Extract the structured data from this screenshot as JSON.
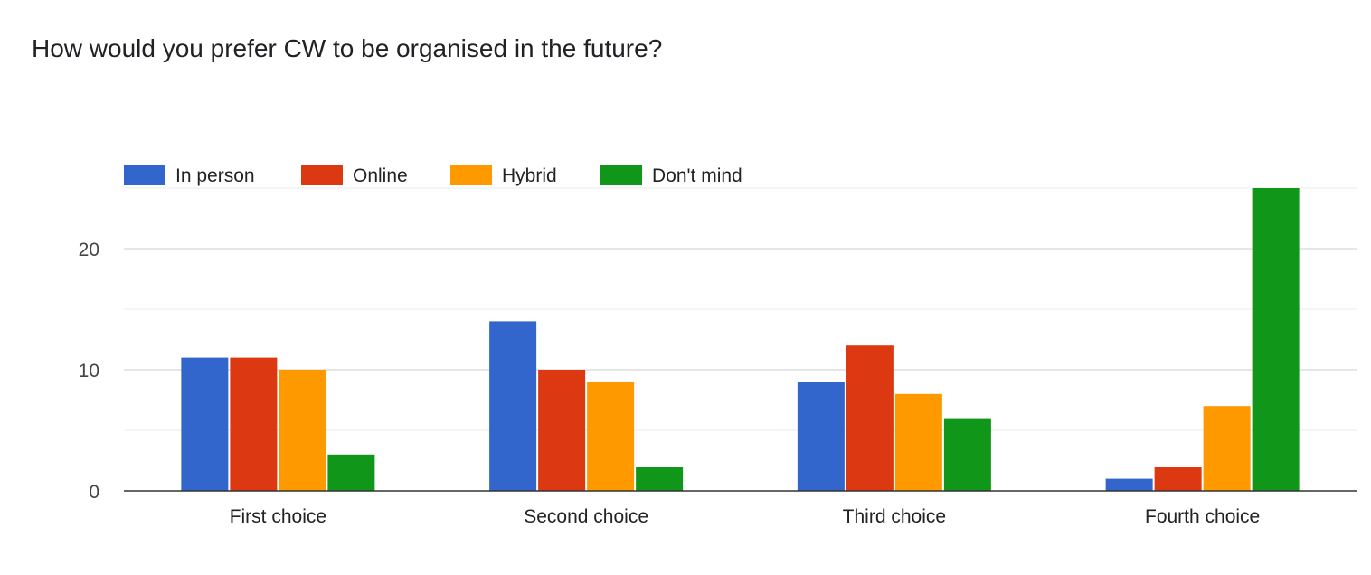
{
  "chart_data": {
    "type": "bar",
    "title": "How would you prefer CW to be organised in the future?",
    "xlabel": "",
    "ylabel": "",
    "categories": [
      "First choice",
      "Second choice",
      "Third choice",
      "Fourth choice"
    ],
    "series": [
      {
        "name": "In person",
        "color": "#3366cc",
        "values": [
          11,
          14,
          9,
          1
        ]
      },
      {
        "name": "Online",
        "color": "#dc3912",
        "values": [
          11,
          10,
          12,
          2
        ]
      },
      {
        "name": "Hybrid",
        "color": "#ff9900",
        "values": [
          10,
          9,
          8,
          7
        ]
      },
      {
        "name": "Don't mind",
        "color": "#109618",
        "values": [
          3,
          2,
          6,
          25
        ]
      }
    ],
    "ylim": [
      0,
      25
    ],
    "yticks": [
      0,
      10,
      20
    ],
    "y_minor_gridlines": [
      5,
      15,
      25
    ],
    "grid": true,
    "legend_position": "top-left"
  }
}
